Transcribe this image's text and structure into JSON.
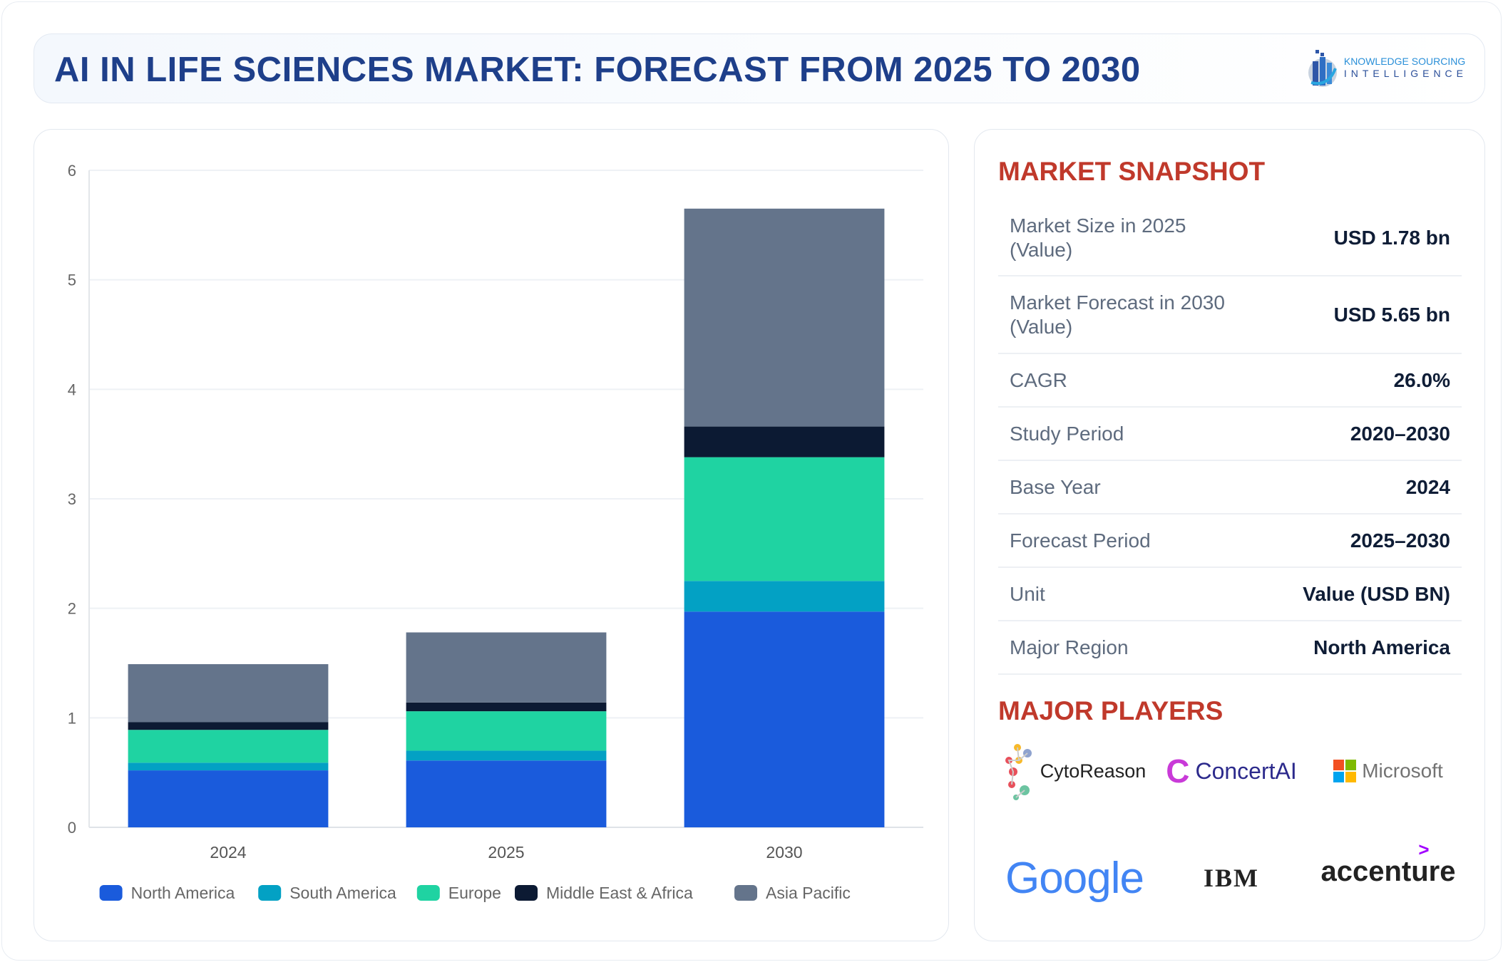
{
  "header": {
    "title": "AI IN LIFE SCIENCES MARKET: FORECAST FROM 2025 TO 2030",
    "logo_line1": "KNOWLEDGE SOURCING",
    "logo_line2": "INTELLIGENCE"
  },
  "chart_data": {
    "type": "bar",
    "stacked": true,
    "categories": [
      "2024",
      "2025",
      "2030"
    ],
    "ylim": [
      0,
      6
    ],
    "yticks": [
      "0",
      "1",
      "2",
      "3",
      "4",
      "5",
      "6"
    ],
    "grid": true,
    "legend": "bottom",
    "series": [
      {
        "name": "North America",
        "color": "#1a5bdc",
        "values": [
          0.52,
          0.61,
          1.97
        ]
      },
      {
        "name": "South America",
        "color": "#03a1c4",
        "values": [
          0.07,
          0.09,
          0.28
        ]
      },
      {
        "name": "Europe",
        "color": "#1fd3a2",
        "values": [
          0.3,
          0.36,
          1.13
        ]
      },
      {
        "name": "Middle East & Africa",
        "color": "#0c1a33",
        "values": [
          0.07,
          0.08,
          0.28
        ]
      },
      {
        "name": "Asia Pacific",
        "color": "#64748b",
        "values": [
          0.53,
          0.64,
          1.99
        ]
      }
    ]
  },
  "snapshot": {
    "title": "MARKET SNAPSHOT",
    "rows": [
      {
        "label": "Market Size in 2025 (Value)",
        "value": "USD 1.78 bn"
      },
      {
        "label": "Market Forecast in 2030 (Value)",
        "value": "USD 5.65 bn"
      },
      {
        "label": "CAGR",
        "value": "26.0%"
      },
      {
        "label": "Study Period",
        "value": "2020–2030"
      },
      {
        "label": "Base Year",
        "value": "2024"
      },
      {
        "label": "Forecast Period",
        "value": "2025–2030"
      },
      {
        "label": "Unit",
        "value": "Value (USD BN)"
      },
      {
        "label": "Major Region",
        "value": "North America"
      }
    ]
  },
  "players": {
    "title": "MAJOR PLAYERS",
    "items": [
      "CytoReason",
      "ConcertAI",
      "Microsoft",
      "Google",
      "IBM",
      "accenture"
    ]
  }
}
